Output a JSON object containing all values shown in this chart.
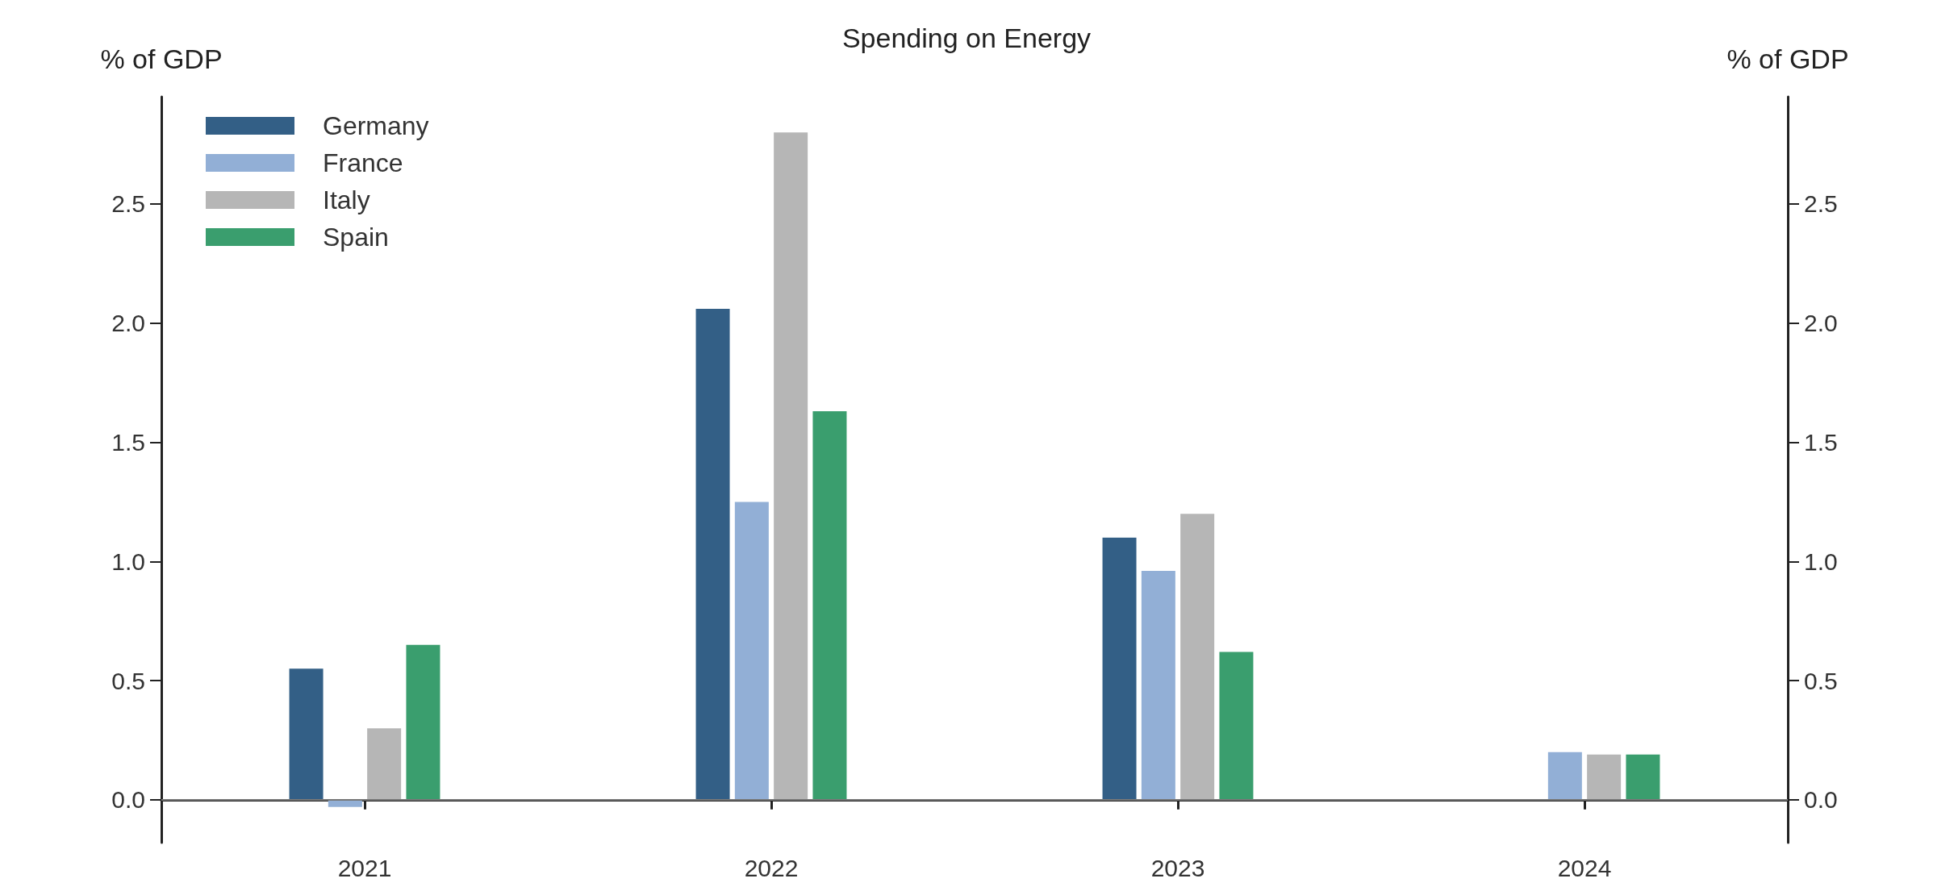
{
  "chart_data": {
    "type": "bar",
    "title": "Spending on Energy",
    "ylabel": "% of GDP",
    "y2label": "% of GDP",
    "categories": [
      "2021",
      "2022",
      "2023",
      "2024"
    ],
    "series": [
      {
        "name": "Germany",
        "color": "#335f86",
        "values": [
          0.55,
          2.06,
          1.1,
          null
        ]
      },
      {
        "name": "France",
        "color": "#92afd6",
        "values": [
          -0.03,
          1.25,
          0.96,
          0.2
        ]
      },
      {
        "name": "Italy",
        "color": "#b6b6b6",
        "values": [
          0.3,
          2.8,
          1.2,
          0.19
        ]
      },
      {
        "name": "Spain",
        "color": "#3a9e6e",
        "values": [
          0.65,
          1.63,
          0.62,
          0.19
        ]
      }
    ],
    "ylim": [
      -0.18,
      2.95
    ],
    "yticks": [
      {
        "value": 0,
        "label": "0.0"
      },
      0.5,
      {
        "value": 1,
        "label": "1.0"
      },
      1.5,
      {
        "value": 2,
        "label": "2.0"
      },
      2.5
    ],
    "y2lim": [
      -0.18,
      2.95
    ],
    "y2ticks": [
      {
        "value": 0,
        "label": "0.0"
      },
      0.5,
      {
        "value": 1,
        "label": "1.0"
      },
      1.5,
      {
        "value": 2,
        "label": "2.0"
      },
      2.5
    ],
    "ref_lines": [
      {
        "axis": "y",
        "value": 0,
        "color": "#777777"
      }
    ],
    "grid": false,
    "legend": "top left"
  }
}
